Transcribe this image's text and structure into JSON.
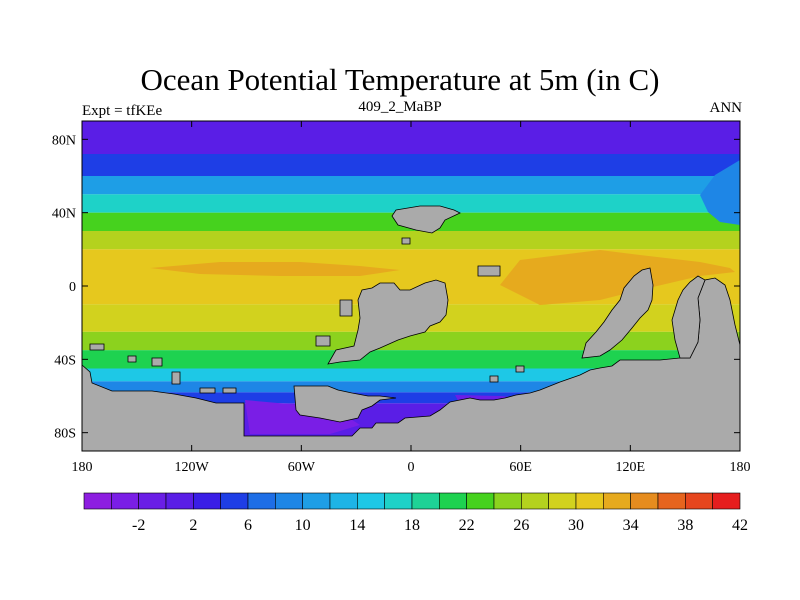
{
  "title": "Ocean Potential Temperature at 5m (in C)",
  "left_string": "Expt = tfKEe",
  "center_string": "409_2_MaBP",
  "right_string": "ANN",
  "map": {
    "lon_range": [
      -180,
      180
    ],
    "lat_range": [
      -90,
      90
    ],
    "land_color": "#aaaaaa",
    "lon_ticks": [
      {
        "value": -180,
        "label": "180"
      },
      {
        "value": -120,
        "label": "120W"
      },
      {
        "value": -60,
        "label": "60W"
      },
      {
        "value": 0,
        "label": "0"
      },
      {
        "value": 60,
        "label": "60E"
      },
      {
        "value": 120,
        "label": "120E"
      },
      {
        "value": 180,
        "label": "180"
      }
    ],
    "lat_ticks": [
      {
        "value": 80,
        "label": "80N"
      },
      {
        "value": 40,
        "label": "40N"
      },
      {
        "value": 0,
        "label": "0"
      },
      {
        "value": -40,
        "label": "40S"
      },
      {
        "value": -80,
        "label": "80S"
      }
    ]
  },
  "colorbar": {
    "colors": [
      "#8d1ee0",
      "#7a1ee6",
      "#6a1ee6",
      "#5a1ee6",
      "#3a1ee6",
      "#1e3ee6",
      "#1e6ee6",
      "#1e86e6",
      "#1e9ee6",
      "#1eb4e6",
      "#1ec8e6",
      "#1ed2c8",
      "#1ed296",
      "#1ed250",
      "#46d21e",
      "#8cd21e",
      "#b4d21e",
      "#d2d21e",
      "#e6c81e",
      "#e6aa1e",
      "#e68c1e",
      "#e6641e",
      "#e6461e",
      "#e61e1e"
    ],
    "labels": [
      "-2",
      "2",
      "6",
      "10",
      "14",
      "18",
      "22",
      "26",
      "30",
      "34",
      "38",
      "42"
    ]
  },
  "temperature_bands": [
    {
      "lat_from": 90,
      "lat_to": 72,
      "value": 2
    },
    {
      "lat_from": 72,
      "lat_to": 60,
      "value": 6
    },
    {
      "lat_from": 60,
      "lat_to": 50,
      "value": 12
    },
    {
      "lat_from": 50,
      "lat_to": 40,
      "value": 18
    },
    {
      "lat_from": 40,
      "lat_to": 30,
      "value": 24
    },
    {
      "lat_from": 30,
      "lat_to": 20,
      "value": 28
    },
    {
      "lat_from": 20,
      "lat_to": -10,
      "value": 32
    },
    {
      "lat_from": -10,
      "lat_to": -25,
      "value": 30
    },
    {
      "lat_from": -25,
      "lat_to": -35,
      "value": 26
    },
    {
      "lat_from": -35,
      "lat_to": -45,
      "value": 22
    },
    {
      "lat_from": -45,
      "lat_to": -52,
      "value": 16
    },
    {
      "lat_from": -52,
      "lat_to": -58,
      "value": 10
    },
    {
      "lat_from": -58,
      "lat_to": -64,
      "value": 6
    },
    {
      "lat_from": -64,
      "lat_to": -90,
      "value": 2
    }
  ]
}
